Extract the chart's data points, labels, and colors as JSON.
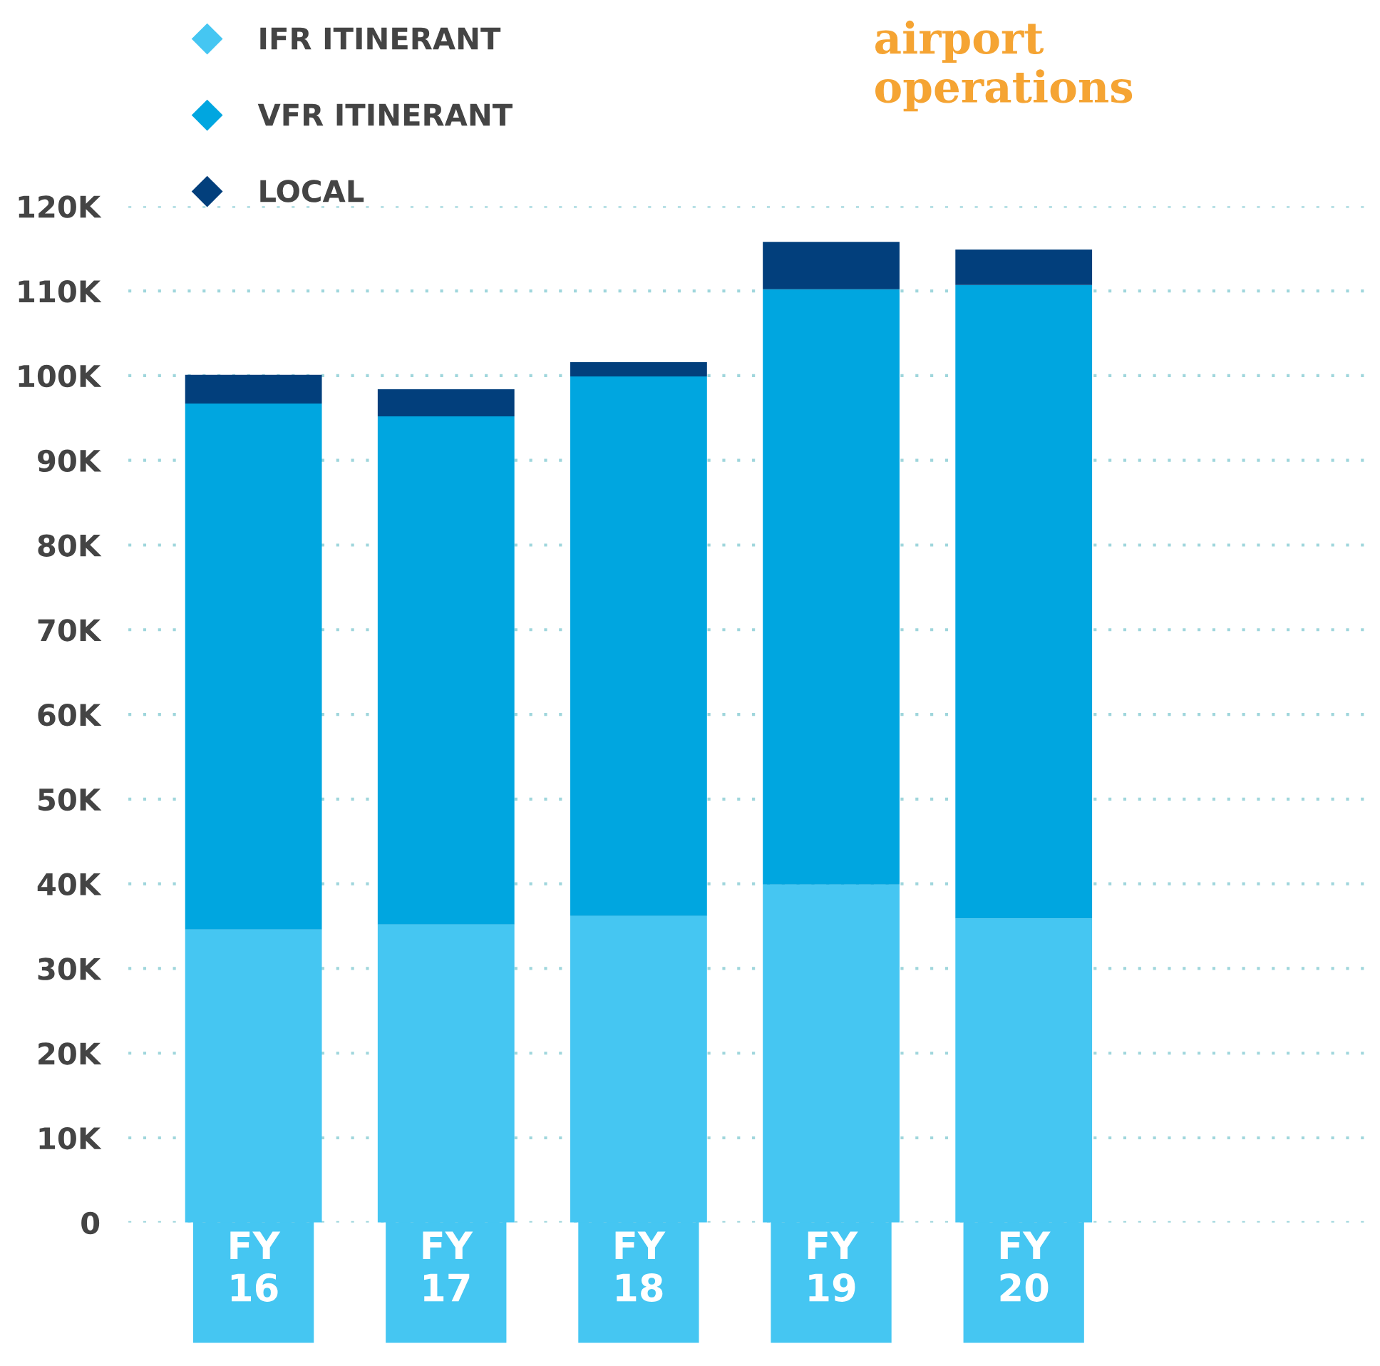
{
  "chart_data": {
    "type": "bar",
    "title": "airport\noperations",
    "stacked": true,
    "categories": [
      "FY\n16",
      "FY\n17",
      "FY\n18",
      "FY\n19",
      "FY\n20"
    ],
    "series": [
      {
        "name": "IFR ITINERANT",
        "color": "#45c6f2",
        "values": [
          34.6,
          35.2,
          36.2,
          39.9,
          35.9
        ]
      },
      {
        "name": "VFR ITINERANT",
        "color": "#00a6e0",
        "values": [
          62.1,
          60.0,
          63.7,
          70.3,
          74.8
        ]
      },
      {
        "name": "LOCAL",
        "color": "#023f7c",
        "values": [
          3.4,
          3.2,
          1.7,
          5.6,
          4.2
        ]
      }
    ],
    "ylim": [
      0,
      120
    ],
    "yticks": [
      {
        "value": 0,
        "label": "0"
      },
      {
        "value": 10,
        "label": "10K"
      },
      {
        "value": 20,
        "label": "20K"
      },
      {
        "value": 30,
        "label": "30K"
      },
      {
        "value": 40,
        "label": "40K"
      },
      {
        "value": 50,
        "label": "50K"
      },
      {
        "value": 60,
        "label": "60K"
      },
      {
        "value": 70,
        "label": "70K"
      },
      {
        "value": 80,
        "label": "80K"
      },
      {
        "value": 90,
        "label": "90K"
      },
      {
        "value": 100,
        "label": "100K"
      },
      {
        "value": 110,
        "label": "110K"
      },
      {
        "value": 120,
        "label": "120K"
      }
    ],
    "grid": "y",
    "legend": "top left",
    "marker": "diamond"
  }
}
